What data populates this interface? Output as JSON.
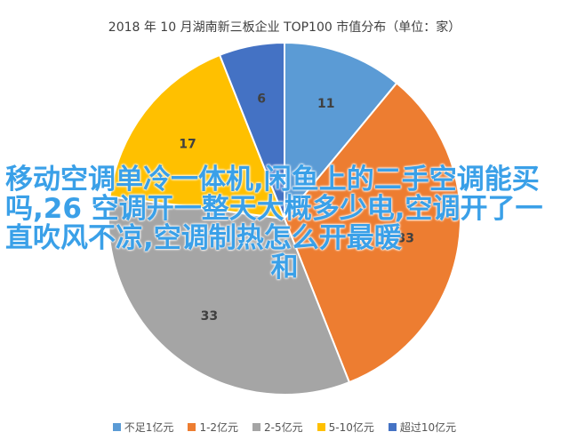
{
  "chart_data": {
    "type": "pie",
    "title": "2018 年 10 月湖南新三板企业 TOP100 市值分布（单位：家）",
    "categories": [
      "不足1亿元",
      "1-2亿元",
      "2-5亿元",
      "5-10亿元",
      "超过10亿元"
    ],
    "values": [
      11,
      33,
      33,
      17,
      6
    ],
    "colors": [
      "#5b9bd5",
      "#ed7d31",
      "#a5a5a5",
      "#ffc000",
      "#4472c4"
    ],
    "legend_position": "bottom"
  },
  "overlay_text": {
    "main": "移动空调单冷一体机,闲鱼上的二手空调能买吗,26 空调开一整天大概多少电,空调开了一直吹风不凉,空调制热怎么开最暖",
    "last": "和"
  }
}
